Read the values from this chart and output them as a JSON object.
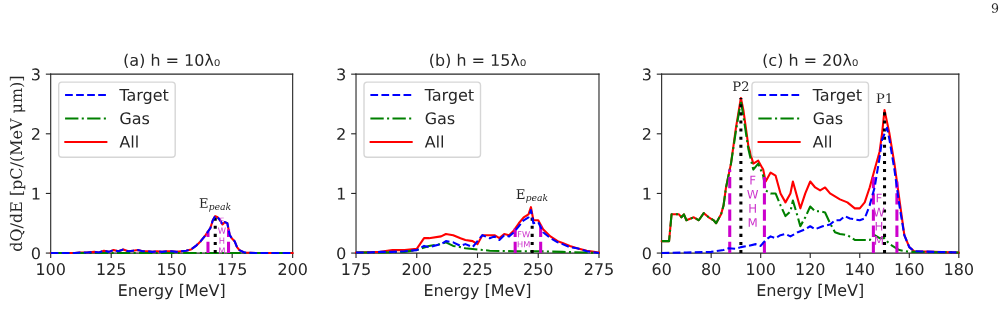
{
  "chart_data": [
    {
      "type": "line",
      "title": "(a) h = 10λ₀",
      "xlabel": "Energy [MeV]",
      "ylabel": "dQ/dE [pC/(MeV μm)]",
      "xlim": [
        100,
        200
      ],
      "ylim": [
        0,
        3
      ],
      "xticks": [
        100,
        125,
        150,
        175,
        200
      ],
      "yticks": [
        0,
        1,
        2,
        3
      ],
      "legend": "top left",
      "grid": false,
      "series": [
        {
          "name": "Target",
          "color": "#0000ff",
          "line_style": "dashed",
          "x": [
            100,
            110,
            112,
            115,
            118,
            120,
            122,
            124,
            126,
            128,
            130,
            132,
            134,
            136,
            138,
            140,
            142,
            144,
            146,
            148,
            150,
            152,
            154,
            156,
            158,
            160,
            162,
            164,
            166,
            167,
            168,
            169,
            170,
            171,
            172,
            173,
            174,
            175,
            176,
            177,
            178,
            180,
            185,
            200
          ],
          "values": [
            0,
            0,
            0.01,
            0.01,
            0.02,
            0.01,
            0.04,
            0.02,
            0.05,
            0.03,
            0.06,
            0.03,
            0.04,
            0.05,
            0.03,
            0.03,
            0.02,
            0.03,
            0.02,
            0.03,
            0.03,
            0.02,
            0.03,
            0.04,
            0.06,
            0.12,
            0.2,
            0.3,
            0.42,
            0.55,
            0.62,
            0.6,
            0.55,
            0.48,
            0.52,
            0.5,
            0.3,
            0.24,
            0.2,
            0.1,
            0.05,
            0.01,
            0,
            0
          ]
        },
        {
          "name": "Gas",
          "color": "#008000",
          "line_style": "dashdot",
          "x": [
            100,
            150,
            160,
            170,
            180,
            200
          ],
          "values": [
            0,
            0,
            0,
            0,
            0,
            0
          ]
        },
        {
          "name": "All",
          "color": "#ff0000",
          "line_style": "solid",
          "x": [
            100,
            110,
            112,
            115,
            118,
            120,
            122,
            124,
            126,
            128,
            130,
            132,
            134,
            136,
            138,
            140,
            142,
            144,
            146,
            148,
            150,
            152,
            154,
            156,
            158,
            160,
            162,
            164,
            166,
            167,
            168,
            169,
            170,
            171,
            172,
            173,
            174,
            175,
            176,
            177,
            178,
            180,
            185,
            200
          ],
          "values": [
            0,
            0,
            0.01,
            0.01,
            0.02,
            0.01,
            0.04,
            0.02,
            0.05,
            0.03,
            0.06,
            0.03,
            0.04,
            0.05,
            0.03,
            0.03,
            0.02,
            0.03,
            0.02,
            0.03,
            0.03,
            0.02,
            0.03,
            0.04,
            0.06,
            0.12,
            0.2,
            0.3,
            0.42,
            0.55,
            0.62,
            0.6,
            0.55,
            0.48,
            0.52,
            0.5,
            0.3,
            0.24,
            0.2,
            0.1,
            0.05,
            0.01,
            0,
            0
          ]
        }
      ],
      "ref_lines": [
        {
          "axis": "x",
          "value": 165,
          "color": "#cc00cc",
          "line_style": "dashed"
        },
        {
          "axis": "x",
          "value": 173.5,
          "color": "#cc00cc",
          "line_style": "dashed"
        },
        {
          "axis": "x",
          "value": 168,
          "color": "#000000",
          "line_style": "dotted"
        }
      ],
      "annotations": [
        {
          "text": "E$_{peak}$",
          "x": 168,
          "y": 0.62
        },
        {
          "text": "F\nW\nH\nM",
          "x": 173.5,
          "y": 0.28
        }
      ]
    },
    {
      "type": "line",
      "title": "(b) h = 15λ₀",
      "xlabel": "Energy [MeV]",
      "xlim": [
        175,
        275
      ],
      "ylim": [
        0,
        3
      ],
      "xticks": [
        175,
        200,
        225,
        250,
        275
      ],
      "yticks": [
        0,
        1,
        2,
        3
      ],
      "legend": "top left",
      "grid": false,
      "series": [
        {
          "name": "Target",
          "color": "#0000ff",
          "line_style": "dashed",
          "x": [
            175,
            180,
            185,
            190,
            195,
            200,
            203,
            205,
            210,
            212,
            215,
            218,
            220,
            223,
            225,
            227,
            230,
            232,
            234,
            236,
            238,
            240,
            242,
            244,
            246,
            247,
            248,
            250,
            252,
            255,
            258,
            260,
            263,
            266,
            270,
            275
          ],
          "values": [
            0.01,
            0.01,
            0.02,
            0.02,
            0.03,
            0.05,
            0.12,
            0.1,
            0.15,
            0.2,
            0.18,
            0.12,
            0.15,
            0.1,
            0.2,
            0.3,
            0.25,
            0.28,
            0.22,
            0.3,
            0.28,
            0.35,
            0.45,
            0.55,
            0.6,
            0.72,
            0.5,
            0.52,
            0.35,
            0.25,
            0.18,
            0.15,
            0.1,
            0.08,
            0.03,
            0
          ]
        },
        {
          "name": "Gas",
          "color": "#008000",
          "line_style": "dashdot",
          "x": [
            175,
            185,
            195,
            200,
            205,
            210,
            212,
            215,
            218,
            220,
            225,
            230,
            240,
            250,
            260,
            270,
            275
          ],
          "values": [
            0.01,
            0.01,
            0.02,
            0.05,
            0.12,
            0.15,
            0.18,
            0.12,
            0.1,
            0.08,
            0.06,
            0.04,
            0.03,
            0.03,
            0.02,
            0.01,
            0
          ]
        },
        {
          "name": "All",
          "color": "#ff0000",
          "line_style": "solid",
          "x": [
            175,
            185,
            190,
            195,
            200,
            203,
            205,
            210,
            212,
            215,
            218,
            220,
            223,
            225,
            227,
            230,
            232,
            234,
            236,
            238,
            240,
            242,
            244,
            246,
            247,
            248,
            250,
            252,
            255,
            258,
            260,
            263,
            266,
            270,
            275
          ],
          "values": [
            0.01,
            0.02,
            0.05,
            0.05,
            0.07,
            0.25,
            0.25,
            0.28,
            0.32,
            0.3,
            0.25,
            0.22,
            0.2,
            0.15,
            0.3,
            0.3,
            0.3,
            0.25,
            0.32,
            0.3,
            0.38,
            0.5,
            0.6,
            0.65,
            0.77,
            0.55,
            0.55,
            0.4,
            0.28,
            0.2,
            0.17,
            0.12,
            0.08,
            0.04,
            0.01
          ]
        }
      ],
      "ref_lines": [
        {
          "axis": "x",
          "value": 240.5,
          "color": "#cc00cc",
          "line_style": "dashed"
        },
        {
          "axis": "x",
          "value": 251,
          "color": "#cc00cc",
          "line_style": "dashed"
        },
        {
          "axis": "x",
          "value": 247.5,
          "color": "#000000",
          "line_style": "dotted"
        }
      ],
      "annotations": [
        {
          "text": "E$_{peak}$",
          "x": 247.5,
          "y": 0.77
        },
        {
          "text": "FW\nHM",
          "x": 240.5,
          "y": 0.22
        }
      ]
    },
    {
      "type": "line",
      "title": "(c) h = 20λ₀",
      "xlabel": "Energy [MeV]",
      "xlim": [
        60,
        180
      ],
      "ylim": [
        0,
        3
      ],
      "xticks": [
        60,
        80,
        100,
        120,
        140,
        160,
        180
      ],
      "yticks": [
        0,
        1,
        2,
        3
      ],
      "legend": "top",
      "grid": false,
      "series": [
        {
          "name": "Target",
          "color": "#0000ff",
          "line_style": "dashed",
          "x": [
            60,
            70,
            80,
            85,
            87,
            90,
            92,
            95,
            98,
            100,
            102,
            104,
            106,
            108,
            110,
            112,
            115,
            118,
            120,
            122,
            125,
            128,
            130,
            132,
            134,
            136,
            140,
            142,
            144,
            146,
            148,
            149,
            150,
            151,
            152,
            154,
            156,
            158,
            160,
            162,
            170,
            180
          ],
          "values": [
            0,
            0.01,
            0.02,
            0.05,
            0.08,
            0.07,
            0.1,
            0.12,
            0.15,
            0.12,
            0.22,
            0.28,
            0.25,
            0.3,
            0.32,
            0.28,
            0.35,
            0.4,
            0.45,
            0.4,
            0.45,
            0.48,
            0.55,
            0.55,
            0.62,
            0.58,
            0.55,
            0.58,
            0.8,
            1.1,
            1.6,
            1.9,
            2.0,
            2.1,
            1.9,
            1.4,
            0.8,
            0.3,
            0.1,
            0.03,
            0.02,
            0.01
          ]
        },
        {
          "name": "Gas",
          "color": "#008000",
          "line_style": "dashdot",
          "x": [
            60,
            63,
            64,
            67,
            68,
            69,
            70,
            73,
            75,
            77,
            79,
            81,
            82,
            84,
            85,
            86,
            88,
            90,
            92,
            93,
            95,
            97,
            99,
            101,
            102,
            104,
            106,
            108,
            110,
            112,
            113,
            115,
            116,
            118,
            120,
            122,
            124,
            126,
            128,
            130,
            132,
            135,
            138,
            140,
            142,
            144,
            146,
            148,
            150,
            152,
            154,
            156,
            160,
            180
          ],
          "values": [
            0.2,
            0.2,
            0.65,
            0.65,
            0.6,
            0.65,
            0.55,
            0.6,
            0.55,
            0.67,
            0.6,
            0.55,
            0.5,
            0.65,
            0.8,
            1.1,
            1.5,
            2.05,
            2.55,
            2.3,
            1.75,
            1.4,
            1.5,
            1.3,
            1.05,
            1.0,
            1.0,
            0.8,
            0.62,
            0.7,
            0.88,
            0.6,
            0.45,
            0.6,
            0.78,
            0.7,
            0.7,
            0.68,
            0.5,
            0.35,
            0.32,
            0.3,
            0.22,
            0.22,
            0.22,
            0.22,
            0.3,
            0.25,
            0.25,
            0.15,
            0.1,
            0.05,
            0.02,
            0.01
          ]
        },
        {
          "name": "All",
          "color": "#ff0000",
          "line_style": "solid",
          "x": [
            60,
            63,
            64,
            67,
            68,
            69,
            70,
            73,
            75,
            77,
            79,
            81,
            82,
            84,
            85,
            86,
            88,
            90,
            92,
            93,
            95,
            97,
            99,
            101,
            102,
            104,
            106,
            108,
            110,
            112,
            113,
            115,
            116,
            118,
            120,
            122,
            124,
            126,
            128,
            130,
            132,
            135,
            138,
            140,
            142,
            144,
            146,
            148,
            149,
            150,
            151,
            152,
            154,
            156,
            158,
            160,
            162,
            170,
            180
          ],
          "values": [
            0.2,
            0.2,
            0.65,
            0.65,
            0.6,
            0.65,
            0.55,
            0.6,
            0.55,
            0.67,
            0.6,
            0.55,
            0.5,
            0.65,
            0.8,
            1.1,
            1.5,
            2.1,
            2.6,
            2.4,
            1.8,
            1.5,
            1.55,
            1.4,
            1.2,
            1.35,
            1.3,
            1.0,
            0.85,
            1.0,
            1.2,
            0.9,
            0.75,
            1.0,
            1.2,
            1.1,
            1.05,
            1.1,
            1.0,
            0.95,
            0.9,
            0.85,
            0.75,
            0.75,
            0.85,
            1.1,
            1.4,
            1.7,
            2.0,
            2.4,
            2.2,
            2.0,
            1.5,
            0.9,
            0.3,
            0.1,
            0.03,
            0.02,
            0.01
          ]
        }
      ],
      "ref_lines": [
        {
          "axis": "x",
          "value": 87.5,
          "color": "#cc00cc",
          "line_style": "dashed"
        },
        {
          "axis": "x",
          "value": 101.5,
          "color": "#cc00cc",
          "line_style": "dashed"
        },
        {
          "axis": "x",
          "value": 145.5,
          "color": "#cc00cc",
          "line_style": "dashed"
        },
        {
          "axis": "x",
          "value": 155,
          "color": "#cc00cc",
          "line_style": "dashed"
        },
        {
          "axis": "x",
          "value": 92,
          "color": "#000000",
          "line_style": "dotted"
        },
        {
          "axis": "x",
          "value": 150,
          "color": "#000000",
          "line_style": "dotted"
        }
      ],
      "annotations": [
        {
          "text": "P2",
          "x": 92,
          "y": 2.6
        },
        {
          "text": "P1",
          "x": 150,
          "y": 2.4
        },
        {
          "text": "F\nW\nH\nM",
          "x": 101.5,
          "y": 0.85
        },
        {
          "text": "F\nW\nH\nM",
          "x": 145.5,
          "y": 0.55
        },
        "9"
      ]
    }
  ]
}
